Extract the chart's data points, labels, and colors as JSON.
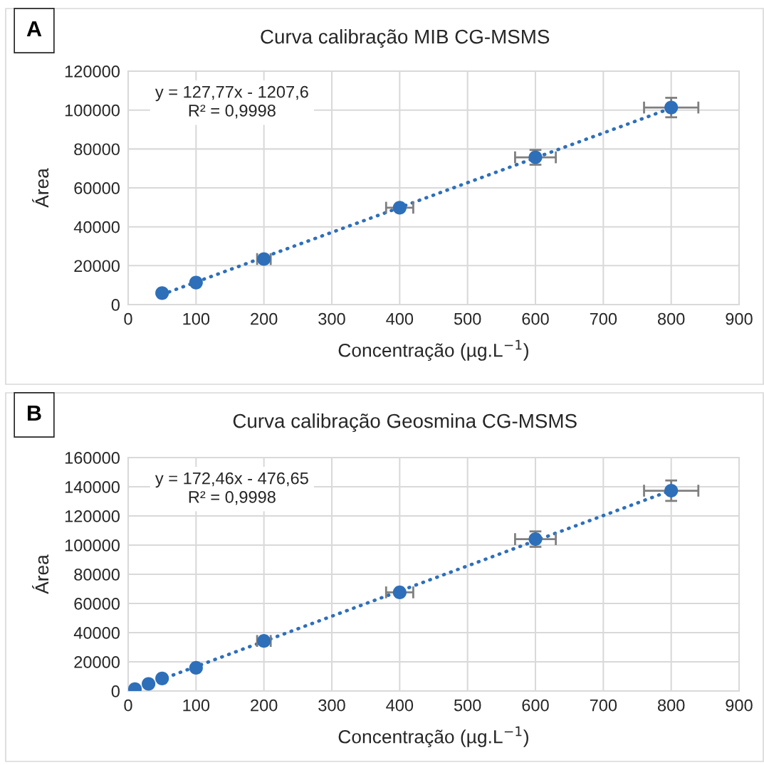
{
  "chart_data": [
    {
      "type": "scatter",
      "title": "Curva calibração MIB CG-MSMS",
      "xlabel": "Concentração (µg.L$^{−1}$)",
      "ylabel": "Área",
      "annotations": [
        "A",
        "y = 127,77x - 1207,6\nR² = 0,9998"
      ],
      "xlim": [
        0,
        900
      ],
      "xticks": [
        0,
        100,
        200,
        300,
        400,
        500,
        600,
        700,
        800,
        900
      ],
      "ylim": [
        0,
        120000
      ],
      "yticks": [
        0,
        20000,
        40000,
        60000,
        80000,
        100000,
        120000
      ],
      "grid": true,
      "series": [
        {
          "type": "line",
          "color": "#2e6fba",
          "line_style": "dotted",
          "x": [
            50,
            800
          ],
          "values": [
            5200,
            101000
          ]
        },
        {
          "type": "scatter",
          "color": "#2e6fba",
          "marker": "circle",
          "x": [
            50,
            100,
            200,
            400,
            600,
            800
          ],
          "values": [
            5900,
            11300,
            23400,
            49800,
            75700,
            101300
          ],
          "errors": [
            null,
            null,
            null,
            null,
            3800,
            5000
          ],
          "xerrors": [
            null,
            null,
            10,
            20,
            30,
            40
          ]
        }
      ]
    },
    {
      "type": "scatter",
      "title": "Curva calibração Geosmina CG-MSMS",
      "xlabel": "Concentração (µg.L$^{−1}$)",
      "ylabel": "Área",
      "annotations": [
        "B",
        "y = 172,46x - 476,65\nR² = 0,9998"
      ],
      "xlim": [
        0,
        900
      ],
      "xticks": [
        0,
        100,
        200,
        300,
        400,
        500,
        600,
        700,
        800,
        900
      ],
      "ylim": [
        0,
        160000
      ],
      "yticks": [
        0,
        20000,
        40000,
        60000,
        80000,
        100000,
        120000,
        140000,
        160000
      ],
      "grid": true,
      "series": [
        {
          "type": "line",
          "color": "#2e6fba",
          "line_style": "dotted",
          "x": [
            5,
            800
          ],
          "values": [
            400,
            137500
          ]
        },
        {
          "type": "scatter",
          "color": "#2e6fba",
          "marker": "circle",
          "x": [
            10,
            30,
            50,
            100,
            200,
            400,
            600,
            800
          ],
          "values": [
            1300,
            4900,
            8600,
            15900,
            34300,
            67600,
            104100,
            137300
          ],
          "errors": [
            null,
            null,
            null,
            null,
            null,
            null,
            5300,
            7000
          ],
          "xerrors": [
            null,
            null,
            null,
            null,
            10,
            20,
            30,
            40
          ]
        }
      ]
    }
  ]
}
